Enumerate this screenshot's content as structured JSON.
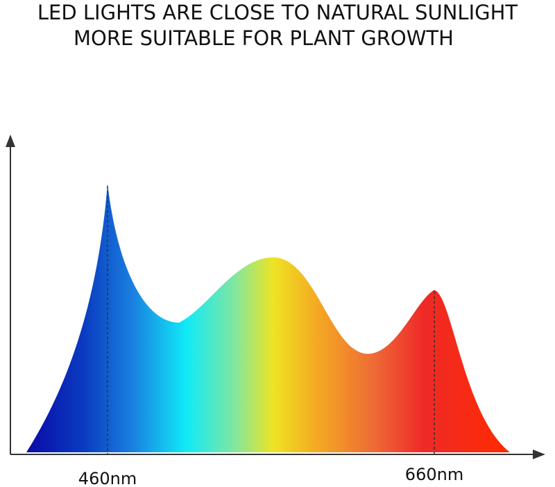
{
  "header": {
    "lines": [
      "LED LIGHTS ARE CLOSE TO NATURAL SUNLIGHT",
      "MORE SUITABLE FOR PLANT GROWTH"
    ]
  },
  "markers": [
    {
      "label": "460nm"
    },
    {
      "label": "660nm"
    }
  ]
}
